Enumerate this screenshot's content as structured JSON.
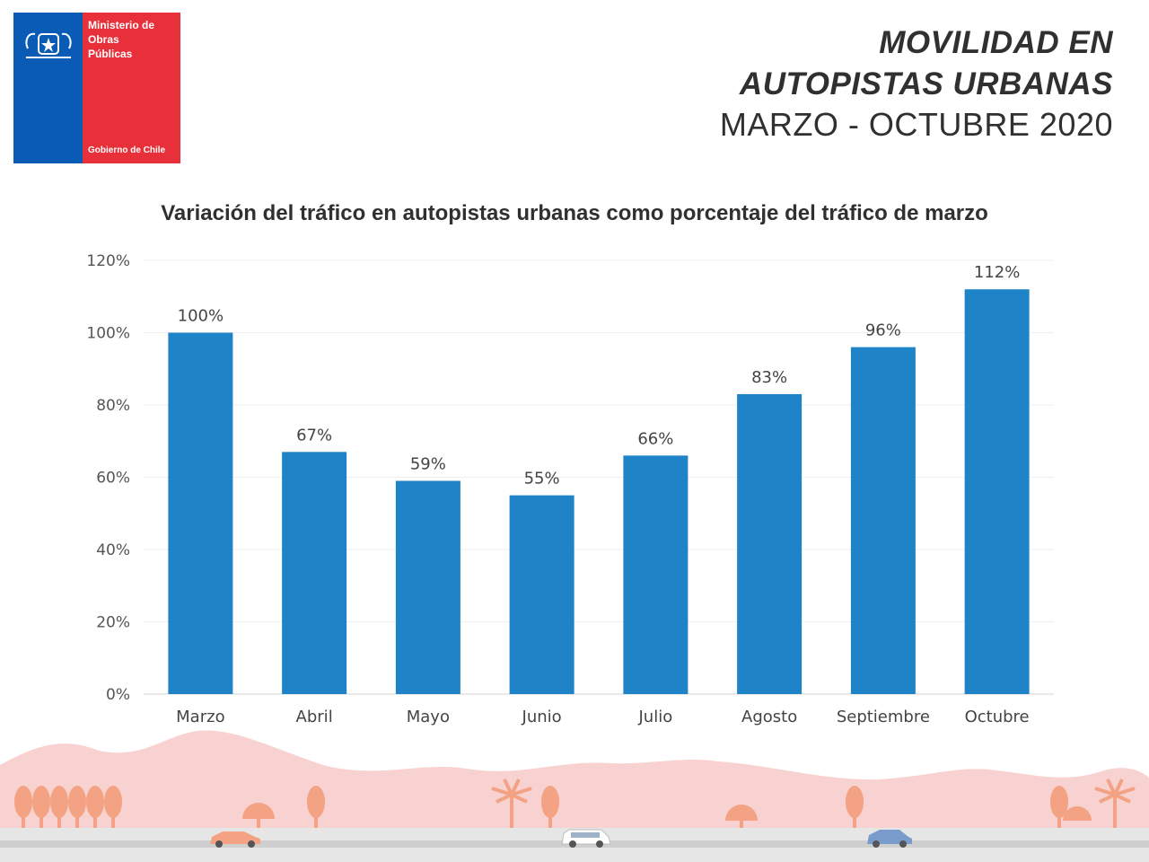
{
  "logo": {
    "ministry_line1": "Ministerio de",
    "ministry_line2": "Obras",
    "ministry_line3": "Públicas",
    "government": "Gobierno de Chile"
  },
  "header": {
    "title_line1": "MOVILIDAD EN",
    "title_line2": "AUTOPISTAS URBANAS",
    "subtitle": "MARZO - OCTUBRE 2020"
  },
  "colors": {
    "bar": "#1f84c7",
    "logo_blue": "#0a5bb5",
    "logo_red": "#e8303a",
    "hills": "#f8d2d0",
    "trees": "#f3a283"
  },
  "chart_data": {
    "type": "bar",
    "title": "Variación del tráfico en autopistas urbanas como porcentaje del tráfico de marzo",
    "categories": [
      "Marzo",
      "Abril",
      "Mayo",
      "Junio",
      "Julio",
      "Agosto",
      "Septiembre",
      "Octubre"
    ],
    "values": [
      100,
      67,
      59,
      55,
      66,
      83,
      96,
      112
    ],
    "value_labels": [
      "100%",
      "67%",
      "59%",
      "55%",
      "66%",
      "83%",
      "96%",
      "112%"
    ],
    "ylim": [
      0,
      120
    ],
    "yticks": [
      "0%",
      "20%",
      "40%",
      "60%",
      "80%",
      "100%",
      "120%"
    ],
    "grid": true,
    "xlabel": "",
    "ylabel": ""
  }
}
